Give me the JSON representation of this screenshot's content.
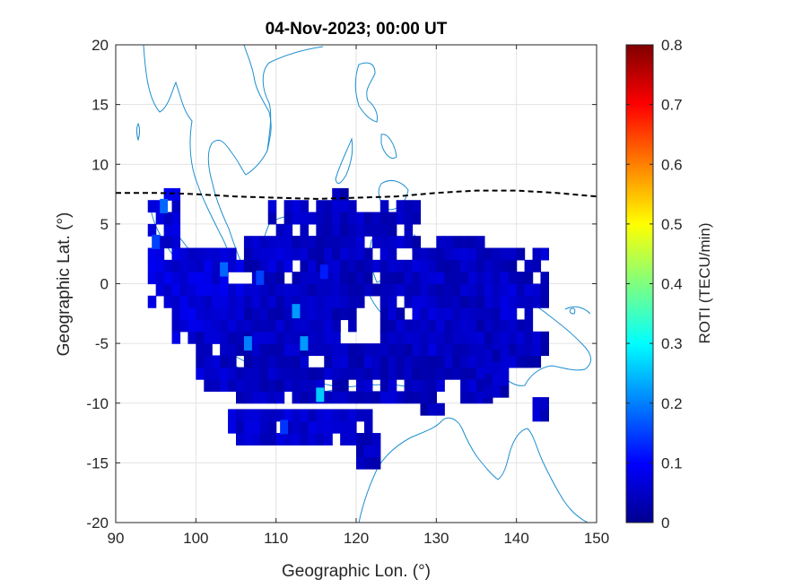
{
  "chart_data": {
    "type": "heatmap",
    "title": "04-Nov-2023; 00:00 UT",
    "xlabel": "Geographic Lon. (°)",
    "ylabel": "Geographic Lat. (°)",
    "xlim": [
      90,
      150
    ],
    "ylim": [
      -20,
      20
    ],
    "xticks": [
      "90",
      "100",
      "110",
      "120",
      "130",
      "140",
      "150"
    ],
    "yticks": [
      "20",
      "15",
      "10",
      "5",
      "0",
      "-5",
      "-10",
      "-15",
      "-20"
    ],
    "grid": true,
    "colorbar": {
      "label": "ROTI (TECU/min)",
      "range": [
        0,
        0.8
      ],
      "ticks": [
        "0",
        "0.1",
        "0.2",
        "0.3",
        "0.4",
        "0.5",
        "0.6",
        "0.7",
        "0.8"
      ],
      "colormap": "jet"
    },
    "magnetic_equator": {
      "lon": [
        90,
        95,
        100,
        105,
        110,
        115,
        120,
        125,
        130,
        135,
        140,
        145,
        150
      ],
      "lat": [
        7.6,
        7.6,
        7.5,
        7.3,
        7.2,
        7.1,
        7.2,
        7.3,
        7.6,
        7.8,
        7.8,
        7.6,
        7.3
      ]
    },
    "roti_regions": [
      {
        "lon": [
          94,
          97.5
        ],
        "lat": [
          -2,
          7.5
        ],
        "roti": 0.07
      },
      {
        "lon": [
          97,
          106
        ],
        "lat": [
          -5,
          3
        ],
        "roti": 0.07
      },
      {
        "lon": [
          100,
          112
        ],
        "lat": [
          -9,
          -1
        ],
        "roti": 0.06
      },
      {
        "lon": [
          105,
          130
        ],
        "lat": [
          -10,
          -5
        ],
        "roti": 0.05
      },
      {
        "lon": [
          106,
          118
        ],
        "lat": [
          -5,
          4
        ],
        "roti": 0.05
      },
      {
        "lon": [
          109,
          114
        ],
        "lat": [
          1,
          6.5
        ],
        "roti": 0.06
      },
      {
        "lon": [
          114,
          120
        ],
        "lat": [
          -4,
          7
        ],
        "roti": 0.05
      },
      {
        "lon": [
          117,
          119
        ],
        "lat": [
          -1,
          8
        ],
        "roti": 0.05
      },
      {
        "lon": [
          119,
          125
        ],
        "lat": [
          -2,
          6
        ],
        "roti": 0.05
      },
      {
        "lon": [
          123,
          128
        ],
        "lat": [
          -6,
          6.5
        ],
        "roti": 0.05
      },
      {
        "lon": [
          127,
          134
        ],
        "lat": [
          -6,
          3
        ],
        "roti": 0.06
      },
      {
        "lon": [
          130,
          136
        ],
        "lat": [
          -8,
          4
        ],
        "roti": 0.05
      },
      {
        "lon": [
          135,
          140
        ],
        "lat": [
          -7,
          3
        ],
        "roti": 0.05
      },
      {
        "lon": [
          137,
          142
        ],
        "lat": [
          -7,
          1
        ],
        "roti": 0.06
      },
      {
        "lon": [
          138,
          144
        ],
        "lat": [
          -7,
          -4
        ],
        "roti": 0.05
      },
      {
        "lon": [
          140,
          144
        ],
        "lat": [
          -2,
          3
        ],
        "roti": 0.05
      },
      {
        "lon": [
          104,
          122
        ],
        "lat": [
          -13.5,
          -10.5
        ],
        "roti": 0.06
      },
      {
        "lon": [
          120,
          123
        ],
        "lat": [
          -15.5,
          -13
        ],
        "roti": 0.05
      },
      {
        "lon": [
          128,
          131
        ],
        "lat": [
          -11,
          -7
        ],
        "roti": 0.05
      },
      {
        "lon": [
          133,
          137
        ],
        "lat": [
          -10,
          -8
        ],
        "roti": 0.05
      },
      {
        "lon": [
          136,
          139
        ],
        "lat": [
          -9.5,
          -6
        ],
        "roti": 0.05
      },
      {
        "lon": [
          142,
          144
        ],
        "lat": [
          -11.5,
          -10
        ],
        "roti": 0.06
      }
    ],
    "roti_hotspots": [
      {
        "lon": 96,
        "lat": 6.5,
        "roti": 0.18
      },
      {
        "lon": 95,
        "lat": 3.5,
        "roti": 0.15
      },
      {
        "lon": 103.5,
        "lat": 1.2,
        "roti": 0.18
      },
      {
        "lon": 112.5,
        "lat": -2.3,
        "roti": 0.22
      },
      {
        "lon": 115.5,
        "lat": -9.3,
        "roti": 0.26
      },
      {
        "lon": 106.5,
        "lat": -5,
        "roti": 0.2
      },
      {
        "lon": 113.5,
        "lat": -5,
        "roti": 0.22
      },
      {
        "lon": 108,
        "lat": 0.5,
        "roti": 0.15
      },
      {
        "lon": 111,
        "lat": -12,
        "roti": 0.14
      },
      {
        "lon": 116,
        "lat": 1,
        "roti": 0.12
      }
    ]
  }
}
